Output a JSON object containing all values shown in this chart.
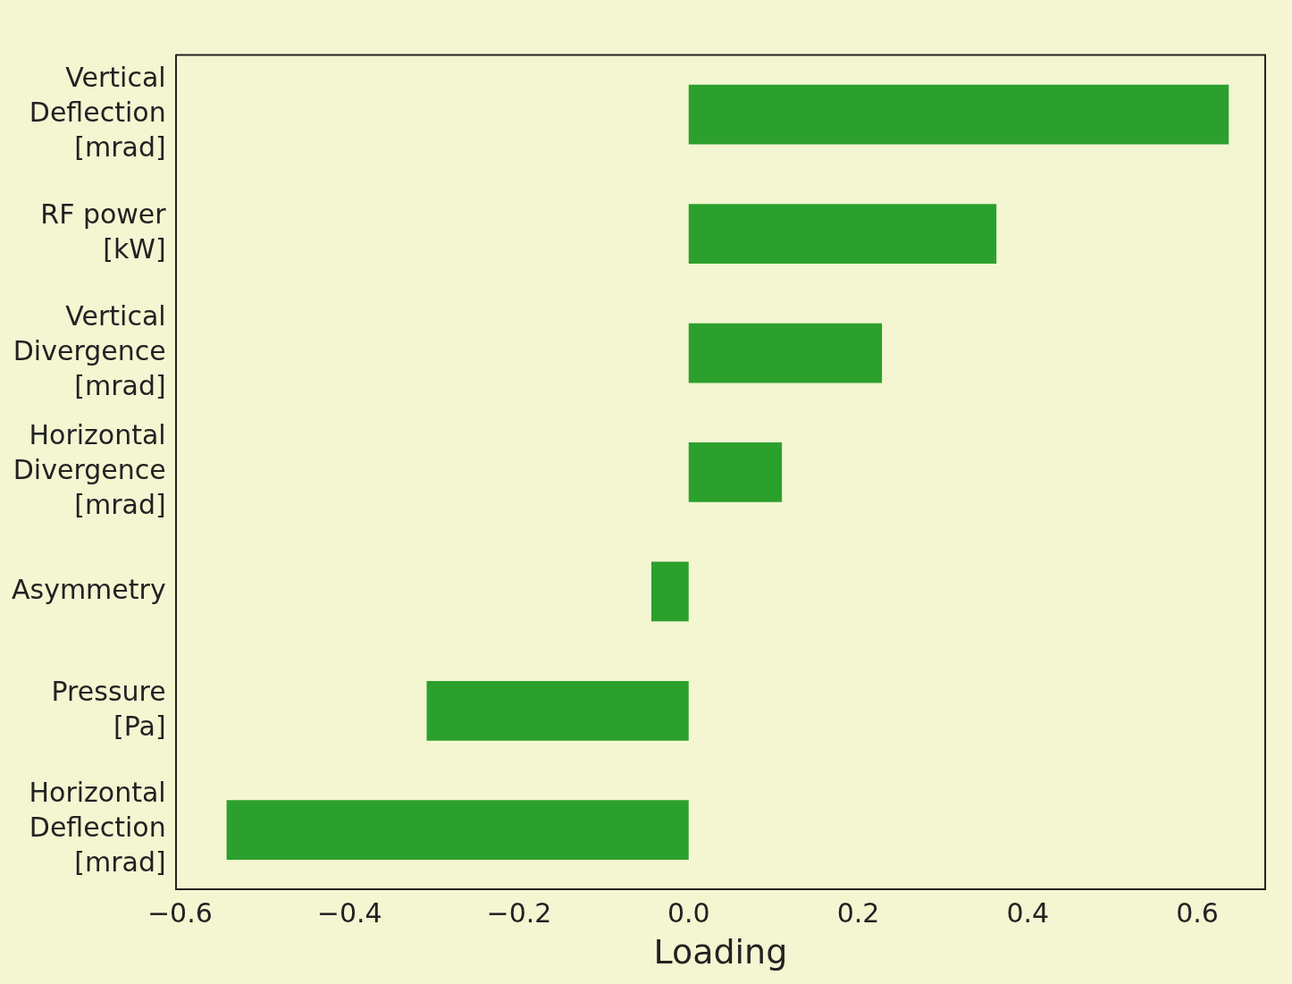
{
  "chart_data": {
    "type": "bar",
    "orientation": "horizontal",
    "xlabel": "Loading",
    "categories": [
      "Vertical\nDeflection\n[mrad]",
      "RF power\n[kW]",
      "Vertical\nDivergence\n[mrad]",
      "Horizontal\nDivergence\n[mrad]",
      "Asymmetry",
      "Pressure\n[Pa]",
      "Horizontal\nDeflection\n[mrad]"
    ],
    "values": [
      0.637,
      0.363,
      0.228,
      0.11,
      -0.044,
      -0.309,
      -0.545
    ],
    "color": "#2ca02c",
    "xlim": [
      -0.605,
      0.68
    ],
    "xticks": [
      {
        "value": -0.6,
        "label": "−0.6"
      },
      {
        "value": -0.4,
        "label": "−0.4"
      },
      {
        "value": -0.2,
        "label": "−0.2"
      },
      {
        "value": 0,
        "label": "0.0"
      },
      {
        "value": 0.2,
        "label": "0.2"
      },
      {
        "value": 0.4,
        "label": "0.4"
      },
      {
        "value": 0.6,
        "label": "0.6"
      }
    ],
    "grid": false,
    "legend": false
  }
}
